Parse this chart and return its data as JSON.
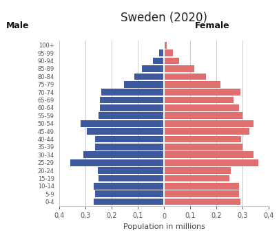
{
  "title": "Sweden (2020)",
  "xlabel": "Population in millions",
  "male_label": "Male",
  "female_label": "Female",
  "age_groups": [
    "0-4",
    "5-9",
    "10-14",
    "15-19",
    "20-24",
    "25-29",
    "30-34",
    "35-39",
    "40-44",
    "45-49",
    "50-54",
    "55-59",
    "60-64",
    "65-69",
    "70-74",
    "75-79",
    "80-84",
    "85-89",
    "90-94",
    "95-99",
    "100+"
  ],
  "male_values": [
    0.27,
    0.265,
    0.27,
    0.25,
    0.255,
    0.36,
    0.31,
    0.265,
    0.265,
    0.295,
    0.32,
    0.25,
    0.245,
    0.245,
    0.24,
    0.155,
    0.115,
    0.085,
    0.042,
    0.02,
    0.005
  ],
  "female_values": [
    0.29,
    0.285,
    0.285,
    0.25,
    0.255,
    0.36,
    0.34,
    0.3,
    0.295,
    0.325,
    0.34,
    0.3,
    0.285,
    0.265,
    0.29,
    0.215,
    0.16,
    0.115,
    0.058,
    0.032,
    0.01
  ],
  "male_color": "#3d5a9e",
  "female_color": "#e07070",
  "background_color": "#ffffff",
  "xlim": 0.4,
  "grid_color": "#cccccc",
  "tick_positions": [
    -0.4,
    -0.3,
    -0.2,
    -0.1,
    0.0,
    0.1,
    0.2,
    0.3,
    0.4
  ],
  "tick_labels": [
    "0,4",
    "0,3",
    "0,2",
    "0,1",
    "0",
    "0,1",
    "0,2",
    "0,3",
    "0,4"
  ]
}
